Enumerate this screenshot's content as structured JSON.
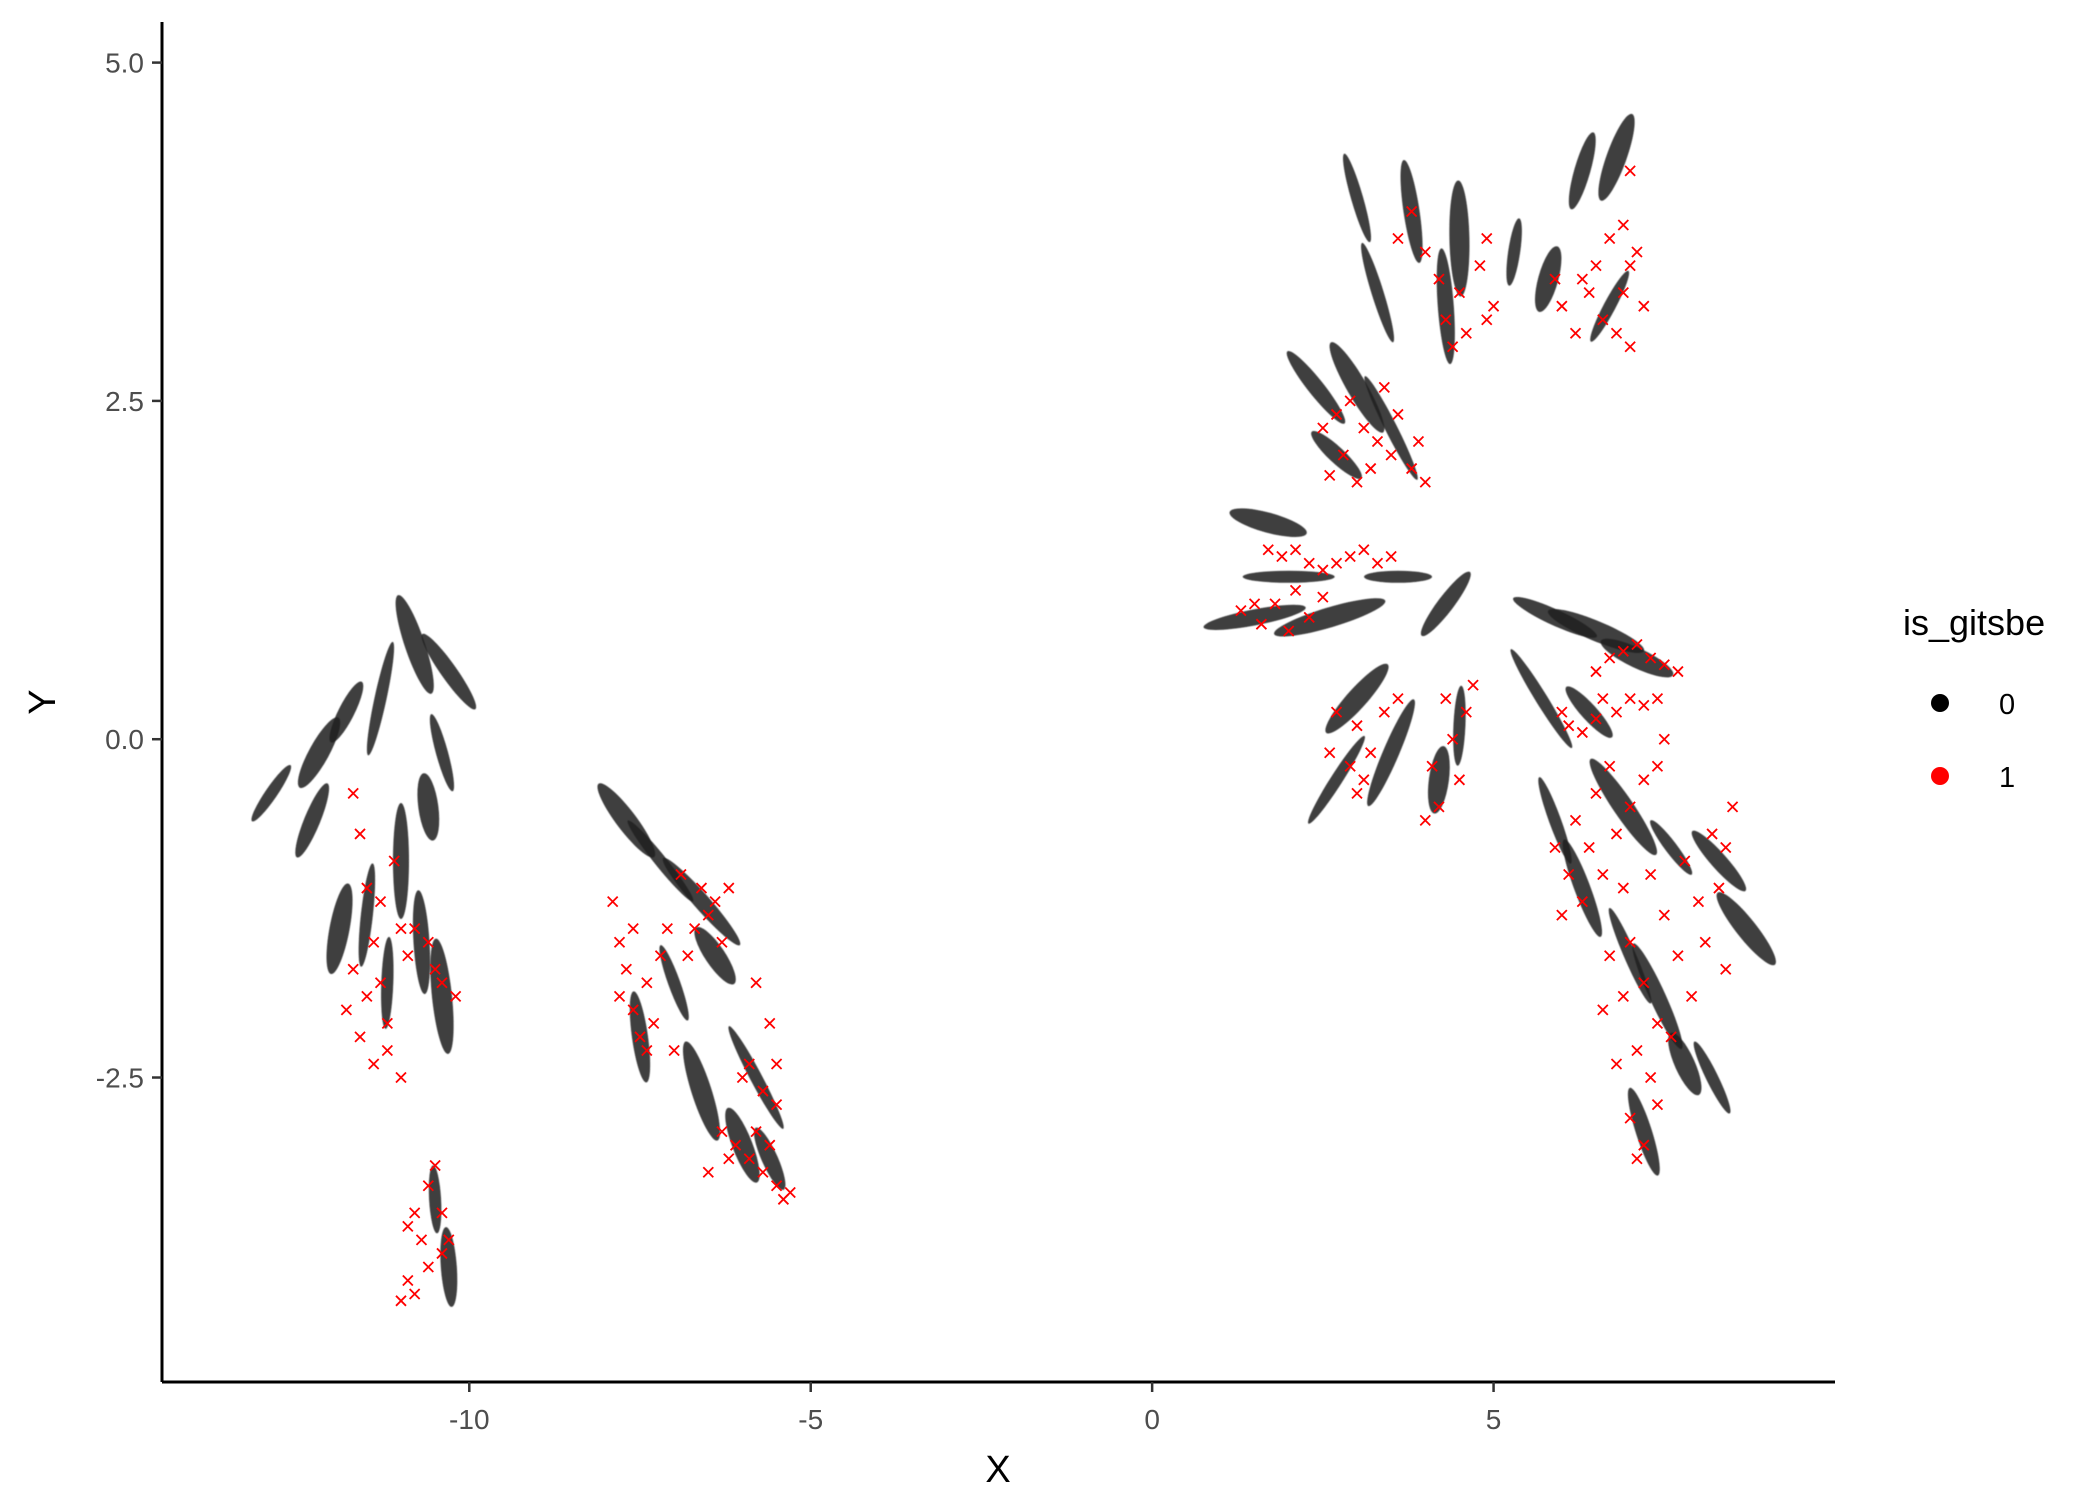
{
  "chart_data": {
    "type": "scatter",
    "title": "",
    "xlabel": "X",
    "ylabel": "Y",
    "xlim": [
      -14.5,
      10
    ],
    "ylim": [
      -4.75,
      5.3
    ],
    "x_ticks": [
      -10,
      -5,
      0,
      5
    ],
    "x_tick_labels": [
      "-10",
      "-5",
      "0",
      "5"
    ],
    "y_ticks": [
      -2.5,
      0,
      2.5,
      5
    ],
    "y_tick_labels": [
      "-2.5",
      "0.0",
      "2.5",
      "5.0"
    ],
    "grid": false,
    "legend": {
      "title": "is_gitsbe",
      "placement": "right",
      "entries": [
        {
          "label": "0",
          "color": "#000000",
          "marker": "point"
        },
        {
          "label": "1",
          "color": "#ff0000",
          "marker": "x"
        }
      ]
    },
    "series": [
      {
        "name": "0",
        "color": "#222222",
        "marker": "streak",
        "points": [
          [
            -12.9,
            -0.4
          ],
          [
            -12.3,
            -0.6
          ],
          [
            -11.9,
            -1.4
          ],
          [
            -11.5,
            -1.3
          ],
          [
            -11.0,
            -0.9
          ],
          [
            -10.6,
            -0.5
          ],
          [
            -10.4,
            -0.1
          ],
          [
            -10.3,
            0.5
          ],
          [
            -10.8,
            0.7
          ],
          [
            -11.3,
            0.3
          ],
          [
            -11.8,
            0.2
          ],
          [
            -12.2,
            -0.1
          ],
          [
            -11.2,
            -1.8
          ],
          [
            -10.7,
            -1.5
          ],
          [
            -10.4,
            -1.9
          ],
          [
            -10.5,
            -3.4
          ],
          [
            -10.3,
            -3.9
          ],
          [
            -7.7,
            -0.6
          ],
          [
            -7.2,
            -0.9
          ],
          [
            -6.6,
            -1.2
          ],
          [
            -6.4,
            -1.6
          ],
          [
            -7.0,
            -1.8
          ],
          [
            -7.5,
            -2.2
          ],
          [
            -6.6,
            -2.6
          ],
          [
            -5.8,
            -2.5
          ],
          [
            -5.6,
            -3.1
          ],
          [
            -6.0,
            -3.0
          ],
          [
            3.0,
            4.0
          ],
          [
            3.8,
            3.9
          ],
          [
            4.5,
            3.7
          ],
          [
            5.3,
            3.6
          ],
          [
            6.3,
            4.2
          ],
          [
            6.8,
            4.3
          ],
          [
            3.3,
            3.3
          ],
          [
            4.3,
            3.2
          ],
          [
            5.8,
            3.4
          ],
          [
            6.7,
            3.2
          ],
          [
            2.4,
            2.6
          ],
          [
            3.0,
            2.6
          ],
          [
            3.5,
            2.3
          ],
          [
            2.7,
            2.1
          ],
          [
            1.7,
            1.6
          ],
          [
            2.0,
            1.2
          ],
          [
            1.5,
            0.9
          ],
          [
            2.6,
            0.9
          ],
          [
            3.6,
            1.2
          ],
          [
            4.3,
            1.0
          ],
          [
            3.0,
            0.3
          ],
          [
            2.7,
            -0.3
          ],
          [
            3.5,
            -0.1
          ],
          [
            4.2,
            -0.3
          ],
          [
            4.5,
            0.1
          ],
          [
            5.9,
            0.9
          ],
          [
            6.5,
            0.8
          ],
          [
            5.7,
            0.3
          ],
          [
            6.4,
            0.2
          ],
          [
            7.1,
            0.6
          ],
          [
            5.9,
            -0.6
          ],
          [
            6.3,
            -1.1
          ],
          [
            6.9,
            -0.5
          ],
          [
            7.6,
            -0.8
          ],
          [
            8.3,
            -0.9
          ],
          [
            8.7,
            -1.4
          ],
          [
            7.0,
            -1.6
          ],
          [
            7.4,
            -1.9
          ],
          [
            7.8,
            -2.4
          ],
          [
            8.2,
            -2.5
          ],
          [
            7.2,
            -2.9
          ]
        ]
      },
      {
        "name": "1",
        "color": "#ff0000",
        "marker": "x",
        "points": [
          [
            -11.6,
            -0.7
          ],
          [
            -11.5,
            -1.1
          ],
          [
            -11.4,
            -1.5
          ],
          [
            -11.3,
            -1.8
          ],
          [
            -11.2,
            -2.1
          ],
          [
            -11.5,
            -1.9
          ],
          [
            -11.7,
            -1.7
          ],
          [
            -11.6,
            -2.2
          ],
          [
            -11.2,
            -2.3
          ],
          [
            -11.0,
            -1.4
          ],
          [
            -10.9,
            -1.6
          ],
          [
            -11.1,
            -0.9
          ],
          [
            -10.6,
            -1.5
          ],
          [
            -10.4,
            -1.8
          ],
          [
            -10.2,
            -1.9
          ],
          [
            -10.5,
            -1.7
          ],
          [
            -11.8,
            -2.0
          ],
          [
            -11.4,
            -2.4
          ],
          [
            -11.0,
            -2.5
          ],
          [
            -11.3,
            -1.2
          ],
          [
            -11.7,
            -0.4
          ],
          [
            -10.8,
            -1.4
          ],
          [
            -10.8,
            -3.5
          ],
          [
            -10.6,
            -3.3
          ],
          [
            -10.9,
            -3.6
          ],
          [
            -10.4,
            -3.5
          ],
          [
            -10.7,
            -3.7
          ],
          [
            -10.9,
            -4.0
          ],
          [
            -10.6,
            -3.9
          ],
          [
            -10.4,
            -3.8
          ],
          [
            -10.8,
            -4.1
          ],
          [
            -11.0,
            -4.15
          ],
          [
            -10.3,
            -3.7
          ],
          [
            -10.5,
            -3.15
          ],
          [
            -7.9,
            -1.2
          ],
          [
            -7.8,
            -1.5
          ],
          [
            -7.7,
            -1.7
          ],
          [
            -7.6,
            -2.0
          ],
          [
            -7.5,
            -2.2
          ],
          [
            -7.4,
            -1.8
          ],
          [
            -7.2,
            -1.6
          ],
          [
            -7.3,
            -2.1
          ],
          [
            -7.6,
            -1.4
          ],
          [
            -7.8,
            -1.9
          ],
          [
            -7.1,
            -1.4
          ],
          [
            -7.0,
            -2.3
          ],
          [
            -7.4,
            -2.3
          ],
          [
            -6.9,
            -1.0
          ],
          [
            -6.6,
            -1.1
          ],
          [
            -6.4,
            -1.2
          ],
          [
            -6.2,
            -1.1
          ],
          [
            -6.5,
            -1.3
          ],
          [
            -6.7,
            -1.4
          ],
          [
            -6.8,
            -1.6
          ],
          [
            -6.3,
            -1.5
          ],
          [
            -5.8,
            -1.8
          ],
          [
            -5.6,
            -2.1
          ],
          [
            -5.5,
            -2.4
          ],
          [
            -5.7,
            -2.6
          ],
          [
            -5.9,
            -2.4
          ],
          [
            -6.0,
            -2.5
          ],
          [
            -6.3,
            -2.9
          ],
          [
            -6.1,
            -3.0
          ],
          [
            -5.9,
            -3.1
          ],
          [
            -5.7,
            -3.2
          ],
          [
            -5.5,
            -3.3
          ],
          [
            -5.4,
            -3.4
          ],
          [
            -5.8,
            -2.9
          ],
          [
            -6.5,
            -3.2
          ],
          [
            -6.2,
            -3.1
          ],
          [
            -5.6,
            -3.0
          ],
          [
            -5.3,
            -3.35
          ],
          [
            -5.5,
            -2.7
          ],
          [
            3.8,
            3.9
          ],
          [
            4.0,
            3.6
          ],
          [
            4.2,
            3.4
          ],
          [
            4.5,
            3.3
          ],
          [
            4.6,
            3.0
          ],
          [
            4.4,
            2.9
          ],
          [
            4.8,
            3.5
          ],
          [
            4.9,
            3.7
          ],
          [
            5.0,
            3.2
          ],
          [
            3.6,
            3.7
          ],
          [
            4.3,
            3.1
          ],
          [
            4.9,
            3.1
          ],
          [
            6.0,
            3.2
          ],
          [
            6.3,
            3.4
          ],
          [
            6.5,
            3.5
          ],
          [
            6.6,
            3.1
          ],
          [
            6.8,
            3.0
          ],
          [
            7.0,
            2.9
          ],
          [
            7.0,
            3.5
          ],
          [
            6.9,
            3.8
          ],
          [
            7.0,
            4.2
          ],
          [
            6.7,
            3.7
          ],
          [
            6.2,
            3.0
          ],
          [
            6.4,
            3.3
          ],
          [
            7.2,
            3.2
          ],
          [
            7.1,
            3.6
          ],
          [
            6.9,
            3.3
          ],
          [
            5.9,
            3.4
          ],
          [
            2.5,
            2.3
          ],
          [
            2.7,
            2.4
          ],
          [
            2.9,
            2.5
          ],
          [
            3.1,
            2.3
          ],
          [
            3.3,
            2.2
          ],
          [
            3.5,
            2.1
          ],
          [
            3.8,
            2.0
          ],
          [
            4.0,
            1.9
          ],
          [
            2.8,
            2.1
          ],
          [
            3.0,
            1.9
          ],
          [
            3.2,
            2.0
          ],
          [
            2.6,
            1.95
          ],
          [
            3.6,
            2.4
          ],
          [
            3.9,
            2.2
          ],
          [
            3.4,
            2.6
          ],
          [
            1.7,
            1.4
          ],
          [
            1.9,
            1.35
          ],
          [
            2.1,
            1.4
          ],
          [
            2.3,
            1.3
          ],
          [
            2.5,
            1.25
          ],
          [
            2.7,
            1.3
          ],
          [
            2.9,
            1.35
          ],
          [
            3.1,
            1.4
          ],
          [
            3.3,
            1.3
          ],
          [
            3.5,
            1.35
          ],
          [
            1.3,
            0.95
          ],
          [
            1.5,
            1.0
          ],
          [
            1.8,
            1.0
          ],
          [
            2.1,
            1.1
          ],
          [
            2.3,
            0.9
          ],
          [
            1.6,
            0.85
          ],
          [
            2.5,
            1.05
          ],
          [
            2.0,
            0.8
          ],
          [
            2.7,
            0.2
          ],
          [
            3.0,
            0.1
          ],
          [
            2.9,
            -0.2
          ],
          [
            3.2,
            -0.1
          ],
          [
            3.0,
            -0.4
          ],
          [
            3.4,
            0.2
          ],
          [
            3.6,
            0.3
          ],
          [
            2.6,
            -0.1
          ],
          [
            3.1,
            -0.3
          ],
          [
            4.1,
            -0.2
          ],
          [
            4.2,
            -0.5
          ],
          [
            4.4,
            0.0
          ],
          [
            4.6,
            0.2
          ],
          [
            4.5,
            -0.3
          ],
          [
            4.3,
            0.3
          ],
          [
            4.7,
            0.4
          ],
          [
            4.0,
            -0.6
          ],
          [
            6.5,
            0.5
          ],
          [
            6.7,
            0.6
          ],
          [
            6.9,
            0.65
          ],
          [
            7.1,
            0.7
          ],
          [
            7.3,
            0.6
          ],
          [
            7.5,
            0.55
          ],
          [
            7.7,
            0.5
          ],
          [
            6.6,
            0.3
          ],
          [
            6.8,
            0.2
          ],
          [
            7.0,
            0.3
          ],
          [
            7.2,
            0.25
          ],
          [
            7.4,
            0.3
          ],
          [
            6.1,
            0.1
          ],
          [
            6.3,
            0.05
          ],
          [
            6.5,
            0.15
          ],
          [
            6.0,
            0.2
          ],
          [
            6.2,
            -0.6
          ],
          [
            6.4,
            -0.8
          ],
          [
            6.6,
            -1.0
          ],
          [
            6.8,
            -0.7
          ],
          [
            7.0,
            -0.5
          ],
          [
            7.2,
            -0.3
          ],
          [
            7.4,
            -0.2
          ],
          [
            6.5,
            -0.4
          ],
          [
            6.9,
            -1.1
          ],
          [
            6.1,
            -1.0
          ],
          [
            6.3,
            -1.2
          ],
          [
            5.9,
            -0.8
          ],
          [
            6.7,
            -0.2
          ],
          [
            7.5,
            0.0
          ],
          [
            6.0,
            -1.3
          ],
          [
            7.3,
            -1.0
          ],
          [
            7.5,
            -1.3
          ],
          [
            7.7,
            -1.6
          ],
          [
            7.9,
            -1.9
          ],
          [
            8.1,
            -1.5
          ],
          [
            8.3,
            -1.1
          ],
          [
            8.4,
            -0.8
          ],
          [
            8.5,
            -0.5
          ],
          [
            8.2,
            -0.7
          ],
          [
            7.8,
            -0.9
          ],
          [
            8.0,
            -1.2
          ],
          [
            8.4,
            -1.7
          ],
          [
            7.0,
            -1.5
          ],
          [
            7.2,
            -1.8
          ],
          [
            7.4,
            -2.1
          ],
          [
            7.1,
            -2.3
          ],
          [
            6.9,
            -1.9
          ],
          [
            6.7,
            -1.6
          ],
          [
            7.3,
            -2.5
          ],
          [
            7.0,
            -2.8
          ],
          [
            7.2,
            -3.0
          ],
          [
            7.4,
            -2.7
          ],
          [
            7.6,
            -2.2
          ],
          [
            6.8,
            -2.4
          ],
          [
            7.1,
            -3.1
          ],
          [
            6.6,
            -2.0
          ]
        ]
      }
    ]
  }
}
